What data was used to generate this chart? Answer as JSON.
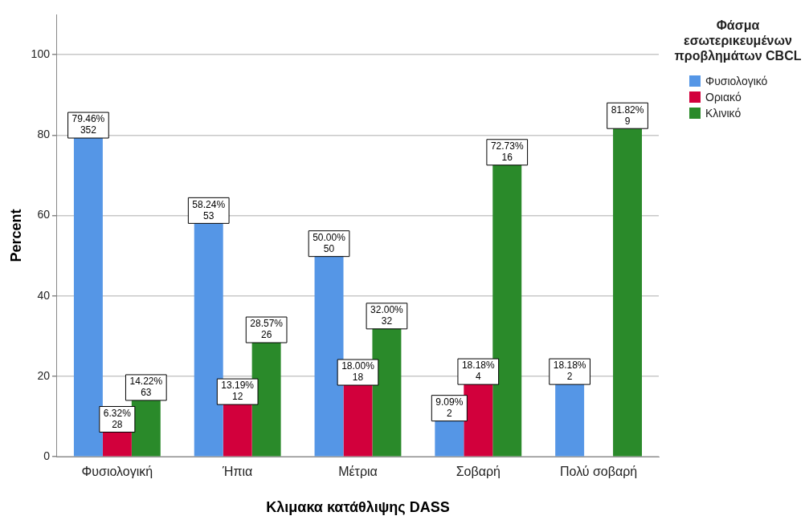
{
  "chart_data": {
    "type": "bar",
    "xlabel": "Κλιμακα κατάθλιψης DASS",
    "ylabel": "Percent",
    "legend_title": "Φάσμα εσωτερικευμένων προβλημάτων CBCL",
    "categories": [
      "Φυσιολογική",
      "Ήπια",
      "Μέτρια",
      "Σοβαρή",
      "Πολύ σοβαρή"
    ],
    "series": [
      {
        "name": "Φυσιολογικό",
        "color": "#5596e6",
        "values": [
          79.46,
          58.24,
          50.0,
          9.09,
          18.18
        ],
        "value_labels": [
          "79.46%\n352",
          "58.24%\n53",
          "50.00%\n50",
          "9.09%\n2",
          "18.18%\n2"
        ]
      },
      {
        "name": "Οριακό",
        "color": "#d2003c",
        "values": [
          6.32,
          13.19,
          18.0,
          18.18,
          null
        ],
        "value_labels": [
          "6.32%\n28",
          "13.19%\n12",
          "18.00%\n18",
          "18.18%\n4",
          null
        ]
      },
      {
        "name": "Κλινικό",
        "color": "#2a8a2a",
        "values": [
          14.22,
          28.57,
          32.0,
          72.73,
          81.82
        ],
        "value_labels": [
          "14.22%\n63",
          "28.57%\n26",
          "32.00%\n32",
          "72.73%\n16",
          "81.82%\n9"
        ]
      }
    ],
    "ylim": [
      0,
      110
    ],
    "yticks": [
      0,
      20,
      40,
      60,
      80,
      100
    ],
    "grid": "y",
    "legend": "top right"
  }
}
